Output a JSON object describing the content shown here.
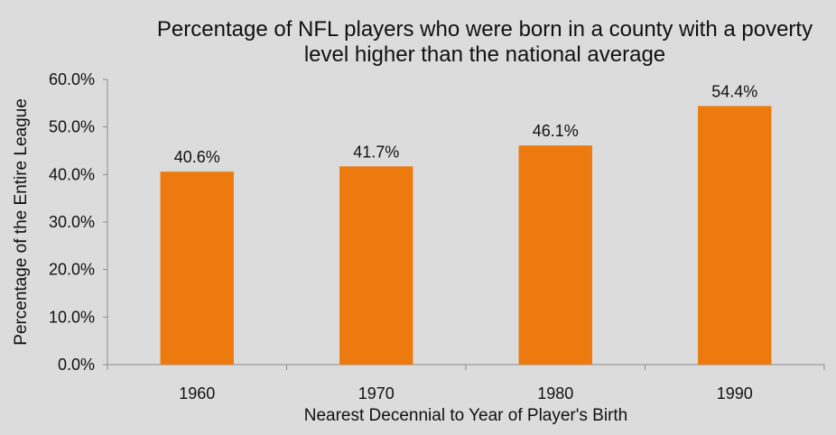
{
  "chart_data": {
    "type": "bar",
    "title_lines": [
      "Percentage of NFL players who were born in a county with a poverty",
      "level higher than the national average"
    ],
    "xlabel": "Nearest Decennial to Year of Player's Birth",
    "ylabel": "Percentage of the Entire League",
    "categories": [
      "1960",
      "1970",
      "1980",
      "1990"
    ],
    "values": [
      40.6,
      41.7,
      46.1,
      54.4
    ],
    "data_labels": [
      "40.6%",
      "41.7%",
      "46.1%",
      "54.4%"
    ],
    "ylim": [
      0,
      60
    ],
    "yticks": [
      0,
      10,
      20,
      30,
      40,
      50,
      60
    ],
    "ytick_labels": [
      "0.0%",
      "10.0%",
      "20.0%",
      "30.0%",
      "40.0%",
      "50.0%",
      "60.0%"
    ],
    "bar_color": "#ed7a0e",
    "grid": false,
    "legend": "none"
  }
}
